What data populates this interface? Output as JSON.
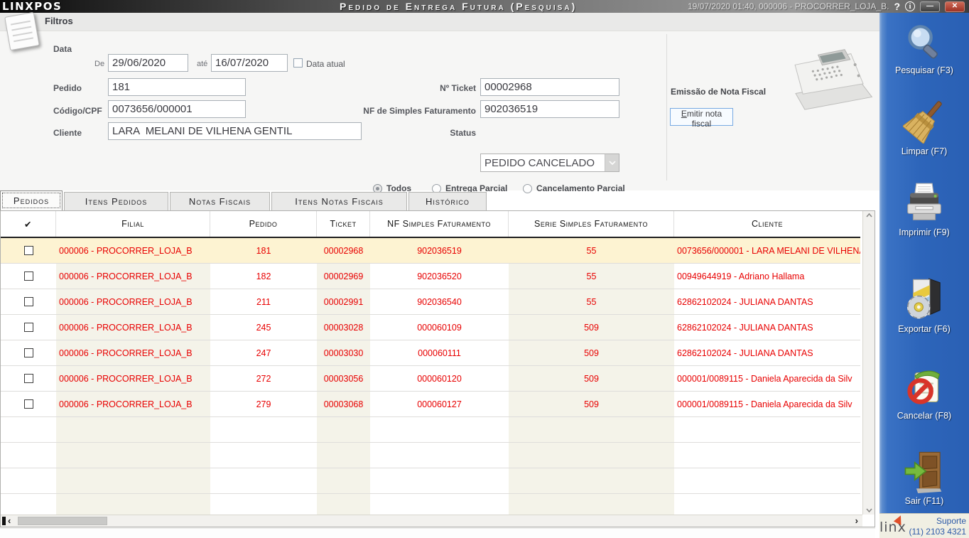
{
  "colors": {
    "sidebar_blue": "#2d65ba",
    "row_text_red": "#e80000",
    "highlight_row": "#fdf3d2",
    "stripe_beige": "#f4f3e9",
    "emitir_border_blue": "#78aae2"
  },
  "title_bar": {
    "logo": "LINXPOS",
    "title": "Pedido de Entrega Futura (Pesquisa)",
    "session_info": "19/07/2020 01:40, 000006 - PROCORRER_LOJA_B.",
    "help_glyph": "?",
    "info_glyph": "i",
    "minimize_glyph": "—",
    "close_glyph": "✕"
  },
  "filters": {
    "header": "Filtros",
    "data_label": "Data",
    "de_label": "De",
    "date_from": "29/06/2020",
    "ate_label": "até",
    "date_to": "16/07/2020",
    "data_atual_label": "Data atual",
    "pedido_label": "Pedido",
    "pedido_value": "181",
    "codigo_label": "Código/CPF",
    "codigo_value": "0073656/000001",
    "cliente_label": "Cliente",
    "cliente_value": "LARA  MELANI DE VILHENA GENTIL",
    "ticket_label": "Nº Ticket",
    "ticket_value": "00002968",
    "nf_label": "NF de Simples Faturamento",
    "nf_value": "902036519",
    "status_label": "Status",
    "status_value": "PEDIDO CANCELADO",
    "radios": [
      {
        "label": "Todos",
        "selected": true
      },
      {
        "label": "Entrega Parcial",
        "selected": false
      },
      {
        "label": "Cancelamento Parcial",
        "selected": false
      }
    ],
    "emissao": {
      "title": "Emissão de Nota Fiscal",
      "button_label": "Emitir nota fiscal"
    }
  },
  "tabs": {
    "items": [
      {
        "label": "Pedidos",
        "active": true
      },
      {
        "label": "Itens Pedidos",
        "active": false
      },
      {
        "label": "Notas Fiscais",
        "active": false
      },
      {
        "label": "Itens Notas Fiscais",
        "active": false
      },
      {
        "label": "Histórico",
        "active": false
      }
    ]
  },
  "table": {
    "columns": [
      "✔",
      "Filial",
      "Pedido",
      "Ticket",
      "NF Simples Faturamento",
      "Serie Simples Faturamento",
      "Cliente"
    ],
    "rows": [
      {
        "filial": "000006 - PROCORRER_LOJA_B",
        "pedido": "181",
        "ticket": "00002968",
        "nf": "902036519",
        "serie": "55",
        "cliente": "0073656/000001 - LARA  MELANI DE VILHENA",
        "highlighted": true
      },
      {
        "filial": "000006 - PROCORRER_LOJA_B",
        "pedido": "182",
        "ticket": "00002969",
        "nf": "902036520",
        "serie": "55",
        "cliente": "00949644919 - Adriano Hallama",
        "highlighted": false
      },
      {
        "filial": "000006 - PROCORRER_LOJA_B",
        "pedido": "211",
        "ticket": "00002991",
        "nf": "902036540",
        "serie": "55",
        "cliente": "62862102024 - JULIANA DANTAS",
        "highlighted": false
      },
      {
        "filial": "000006 - PROCORRER_LOJA_B",
        "pedido": "245",
        "ticket": "00003028",
        "nf": "000060109",
        "serie": "509",
        "cliente": "62862102024 - JULIANA DANTAS",
        "highlighted": false
      },
      {
        "filial": "000006 - PROCORRER_LOJA_B",
        "pedido": "247",
        "ticket": "00003030",
        "nf": "000060111",
        "serie": "509",
        "cliente": "62862102024 - JULIANA DANTAS",
        "highlighted": false
      },
      {
        "filial": "000006 - PROCORRER_LOJA_B",
        "pedido": "272",
        "ticket": "00003056",
        "nf": "000060120",
        "serie": "509",
        "cliente": "000001/0089115 - Daniela  Aparecida da Silv",
        "highlighted": false
      },
      {
        "filial": "000006 - PROCORRER_LOJA_B",
        "pedido": "279",
        "ticket": "00003068",
        "nf": "000060127",
        "serie": "509",
        "cliente": "000001/0089115 - Daniela  Aparecida da Silv",
        "highlighted": false
      }
    ],
    "empty_rows": 4
  },
  "sidebar": {
    "buttons": [
      {
        "label": "Pesquisar (F3)"
      },
      {
        "label": "Limpar (F7)"
      },
      {
        "label": "Imprimir (F9)"
      },
      {
        "label": "Exportar (F6)"
      },
      {
        "label": "Cancelar (F8)"
      },
      {
        "label": "Sair (F11)"
      }
    ],
    "support": {
      "line1": "Suporte",
      "line2": "(11) 2103 4321",
      "logo": "linx"
    }
  }
}
